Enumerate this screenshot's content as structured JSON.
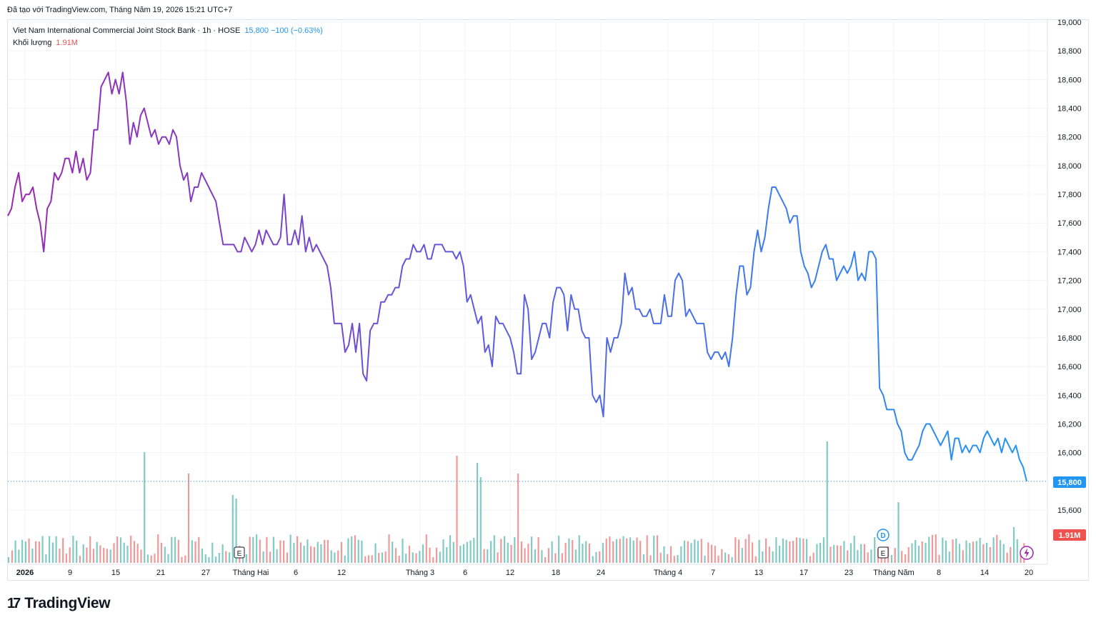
{
  "caption": "Đã tạo với TradingView.com, Tháng Năm 19, 2026 15:21 UTC+7",
  "legend": {
    "symbol": "Viet Nam International Commercial Joint Stock Bank · 1h · HOSE",
    "price_change": "15,800  −100 (−0.63%)",
    "volume_label": "Khối lượng",
    "volume_value": "1.91M"
  },
  "price_tag": "15,800",
  "volume_tag": "1.91M",
  "brand": "TradingView",
  "colors": {
    "line_start": "#9c27b0",
    "line_mid": "#5b5fe0",
    "line_end": "#2196f3",
    "vol_up": "#80cbc4",
    "vol_down": "#ef9a9a",
    "price_tag_bg": "#2196f3",
    "vol_tag_bg": "#ef5350",
    "grid": "#f0f3fa"
  },
  "chart_data": {
    "type": "line",
    "y_axis_ticks": [
      "19,000",
      "18,800",
      "18,600",
      "18,400",
      "18,200",
      "18,000",
      "17,800",
      "17,600",
      "17,400",
      "17,200",
      "17,000",
      "16,800",
      "16,600",
      "16,400",
      "16,200",
      "16,000",
      "15,800",
      "15,600"
    ],
    "ylim": [
      15500,
      19000
    ],
    "x_ticks": [
      {
        "label": "2026",
        "bold": true
      },
      {
        "label": "9"
      },
      {
        "label": "15"
      },
      {
        "label": "21"
      },
      {
        "label": "27"
      },
      {
        "label": "Tháng Hai"
      },
      {
        "label": "6"
      },
      {
        "label": "12"
      },
      {
        "label": "Tháng 3"
      },
      {
        "label": "6"
      },
      {
        "label": "12"
      },
      {
        "label": "18"
      },
      {
        "label": "24"
      },
      {
        "label": "Tháng 4"
      },
      {
        "label": "7"
      },
      {
        "label": "13"
      },
      {
        "label": "17"
      },
      {
        "label": "23"
      },
      {
        "label": "Tháng Năm"
      },
      {
        "label": "8"
      },
      {
        "label": "14"
      },
      {
        "label": "20"
      }
    ],
    "series": [
      {
        "values": [
          17650,
          17700,
          17850,
          17950,
          17750,
          17800,
          17800,
          17850,
          17700,
          17600,
          17400,
          17700,
          17750,
          17950,
          17900,
          17950,
          18050,
          18050,
          17950,
          18100,
          17950,
          18050,
          17900,
          17950,
          18250,
          18250,
          18550,
          18600,
          18650,
          18500,
          18600,
          18500,
          18650,
          18450,
          18150,
          18300,
          18200,
          18350,
          18400,
          18300,
          18200,
          18250,
          18150,
          18200,
          18200,
          18150,
          18250,
          18200,
          18000,
          17900,
          17950,
          17750,
          17850,
          17850,
          17950,
          17900,
          17850,
          17800,
          17750,
          17600,
          17450,
          17450,
          17450,
          17450,
          17400,
          17400,
          17500,
          17450,
          17400,
          17450,
          17550,
          17450,
          17550,
          17500,
          17450,
          17450,
          17500,
          17800,
          17450,
          17450,
          17550,
          17450,
          17650,
          17400,
          17500,
          17400,
          17450,
          17400,
          17350,
          17300,
          17150,
          16900,
          16900,
          16900,
          16700,
          16750,
          16900,
          16700,
          16900,
          16550,
          16500,
          16850,
          16900,
          16900,
          17050,
          17050,
          17100,
          17100,
          17150,
          17150,
          17300,
          17350,
          17350,
          17450,
          17400,
          17400,
          17450,
          17350,
          17350,
          17450,
          17450,
          17450,
          17400,
          17400,
          17400,
          17350,
          17400,
          17300,
          17050,
          17100,
          17000,
          16900,
          16950,
          16700,
          16750,
          16600,
          16950,
          16900,
          16900,
          16850,
          16800,
          16700,
          16550,
          16550,
          17100,
          17000,
          16650,
          16700,
          16800,
          16900,
          16900,
          16800,
          17050,
          17150,
          17150,
          17100,
          16850,
          17100,
          17000,
          17000,
          16850,
          16800,
          16800,
          16400,
          16350,
          16400,
          16250,
          16800,
          16700,
          16800,
          16800,
          16900,
          17250,
          17100,
          17150,
          17000,
          17000,
          16950,
          16950,
          17000,
          16900,
          16900,
          16900,
          17100,
          16950,
          16950,
          17200,
          17250,
          17200,
          16950,
          17000,
          16950,
          16900,
          16900,
          16900,
          16700,
          16650,
          16700,
          16700,
          16650,
          16700,
          16600,
          16800,
          17100,
          17300,
          17300,
          17100,
          17150,
          17400,
          17550,
          17400,
          17500,
          17700,
          17850,
          17850,
          17800,
          17750,
          17700,
          17600,
          17650,
          17650,
          17400,
          17300,
          17250,
          17150,
          17200,
          17300,
          17400,
          17450,
          17350,
          17350,
          17200,
          17250,
          17300,
          17250,
          17300,
          17400,
          17200,
          17250,
          17200,
          17400,
          17400,
          17350,
          16450,
          16400,
          16300,
          16300,
          16300,
          16200,
          16150,
          16000,
          15950,
          15950,
          16000,
          16050,
          16150,
          16200,
          16200,
          16150,
          16100,
          16050,
          16100,
          16150,
          15950,
          16100,
          16100,
          16000,
          16050,
          16000,
          16050,
          16050,
          16000,
          16100,
          16150,
          16100,
          16050,
          16100,
          16000,
          16100,
          16050,
          16000,
          16050,
          15950,
          15900,
          15800
        ]
      }
    ],
    "volume": {
      "label": "Khối lượng",
      "last": "1.91M"
    },
    "last_price": 15800,
    "markers": [
      "E",
      "E",
      "D"
    ]
  }
}
